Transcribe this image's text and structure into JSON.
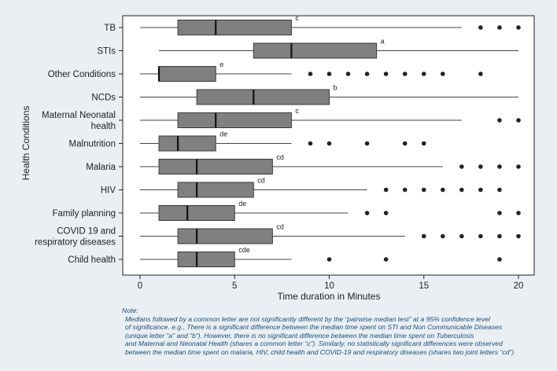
{
  "chart_data": {
    "type": "boxplot",
    "orientation": "horizontal",
    "xlabel": "Time duration in Minutes",
    "ylabel": "Health Conditions",
    "xlim": [
      -1,
      21
    ],
    "xticks": [
      0,
      5,
      10,
      15,
      20
    ],
    "tick_labels": [
      "0",
      "5",
      "10",
      "15",
      "20"
    ],
    "grid": false,
    "categories": [
      {
        "label": [
          "TB"
        ],
        "whisker_low": 0,
        "q1": 2,
        "median": 4,
        "q3": 8,
        "whisker_high": 17,
        "outliers": [
          18,
          19,
          20
        ],
        "letter": "c"
      },
      {
        "label": [
          "STIs"
        ],
        "whisker_low": 1,
        "q1": 6,
        "median": 8,
        "q3": 12.5,
        "whisker_high": 20,
        "outliers": [],
        "letter": "a"
      },
      {
        "label": [
          "Other Conditions"
        ],
        "whisker_low": 0,
        "q1": 1,
        "median": 1,
        "q3": 4,
        "whisker_high": 8,
        "outliers": [
          9,
          10,
          11,
          12,
          13,
          14,
          15,
          16,
          18
        ],
        "letter": "e"
      },
      {
        "label": [
          "NCDs"
        ],
        "whisker_low": 0,
        "q1": 3,
        "median": 6,
        "q3": 10,
        "whisker_high": 20,
        "outliers": [],
        "letter": "b"
      },
      {
        "label": [
          "Maternal Neonatal",
          "health"
        ],
        "whisker_low": 0,
        "q1": 2,
        "median": 4,
        "q3": 8,
        "whisker_high": 17,
        "outliers": [
          19,
          20
        ],
        "letter": "c"
      },
      {
        "label": [
          "Malnutrition"
        ],
        "whisker_low": 0,
        "q1": 1,
        "median": 2,
        "q3": 4,
        "whisker_high": 8,
        "outliers": [
          9,
          10,
          12,
          14,
          15
        ],
        "letter": "de"
      },
      {
        "label": [
          "Malaria"
        ],
        "whisker_low": 0,
        "q1": 1,
        "median": 3,
        "q3": 7,
        "whisker_high": 16,
        "outliers": [
          17,
          18,
          19,
          20
        ],
        "letter": "cd"
      },
      {
        "label": [
          "HIV"
        ],
        "whisker_low": 0,
        "q1": 2,
        "median": 3,
        "q3": 6,
        "whisker_high": 12,
        "outliers": [
          13,
          14,
          15,
          16,
          17,
          18,
          19
        ],
        "letter": "cd"
      },
      {
        "label": [
          "Family planning"
        ],
        "whisker_low": 0,
        "q1": 1,
        "median": 2.5,
        "q3": 5,
        "whisker_high": 11,
        "outliers": [
          12,
          13,
          19,
          20
        ],
        "letter": "de"
      },
      {
        "label": [
          "COVID 19 and",
          "respiratory diseases"
        ],
        "whisker_low": 0,
        "q1": 2,
        "median": 3,
        "q3": 7,
        "whisker_high": 14,
        "outliers": [
          15,
          16,
          17,
          18,
          19,
          20
        ],
        "letter": "cd"
      },
      {
        "label": [
          "Child health"
        ],
        "whisker_low": 0,
        "q1": 2,
        "median": 3,
        "q3": 5,
        "whisker_high": 8,
        "outliers": [
          10,
          13,
          19
        ],
        "letter": "cde"
      }
    ],
    "colors": {
      "background": "#e9eff3",
      "plot_area": "#ffffff",
      "box_fill": "#808080",
      "box_stroke": "#3a3a3a",
      "whisker": "#444444",
      "outlier": "#222222"
    }
  },
  "note": {
    "heading": "Note:",
    "lines": [
      "Medians followed by a common letter are not significantly different by the “pairwise median test” at a 95% confidence level",
      "of significance. e.g., There is a significant difference between the median time spent on STI and Non Communicable Diseases",
      "(unique letter “a” and “b”). However, there is no significant difference between the median time spent on Tuberculosis",
      "and Maternal and Neonatal Health (shares a common letter “c”). Similarly, no statistically significant differences were observed",
      "between the median time spent on malaria, HIV, child health and COVID-19 and respiratory diseases (shares two joint letters “cd”)"
    ]
  }
}
